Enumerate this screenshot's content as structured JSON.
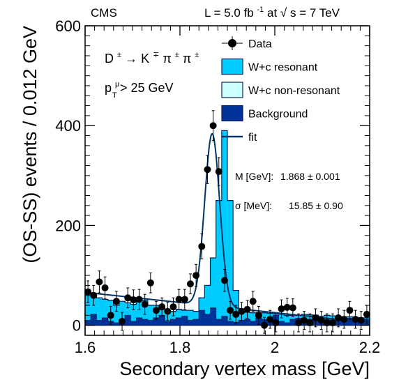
{
  "chart_data": {
    "type": "bar",
    "experiment_label": "CMS",
    "energy_label": {
      "lumi_prefix": "L = 5.0 fb",
      "lumi_exp": "-1",
      "mid": " at ",
      "sqrt": "√",
      "s_part": "s = 7 TeV"
    },
    "xlabel": "Secondary vertex mass [GeV]",
    "ylabel": "(OS-SS) events / 0.012 GeV",
    "xlim": [
      1.6,
      2.2
    ],
    "ylim": [
      -20,
      600
    ],
    "x_ticks": [
      1.6,
      1.8,
      2.0,
      2.2
    ],
    "x_tick_labels": [
      "1.6",
      "1.8",
      "2",
      "2.2"
    ],
    "y_ticks": [
      0,
      200,
      400,
      600
    ],
    "y_tick_labels": [
      "0",
      "200",
      "400",
      "600"
    ],
    "decay_label": {
      "D": "D",
      "D_sup": "±",
      "arrow": " → ",
      "K": "K",
      "K_sup": "∓",
      "pi1": "π",
      "pi1_sup": "±",
      "pi2": "π",
      "pi2_sup": "±"
    },
    "cut_label": {
      "p": "p",
      "p_sup": "μ",
      "p_sub": "T",
      "rest": " > 25 GeV"
    },
    "fit_results": {
      "mass_label": "M [GeV]:",
      "mass_value": "1.868 ± 0.001",
      "sigma_label": "σ [MeV]:",
      "sigma_value": "15.85 ± 0.90"
    },
    "legend_position": "top-right",
    "legend": [
      {
        "name": "Data",
        "kind": "marker",
        "color": "#000000"
      },
      {
        "name": "W+c resonant",
        "kind": "box",
        "color": "#00ccff"
      },
      {
        "name": "W+c non-resonant",
        "kind": "box",
        "color": "#ccffff"
      },
      {
        "name": "Background",
        "kind": "box",
        "color": "#003399"
      },
      {
        "name": "fit",
        "kind": "line",
        "color": "#003366"
      }
    ],
    "colors": {
      "resonant": "#00ccff",
      "nonresonant": "#ccffff",
      "background": "#003399",
      "fit": "#003366",
      "outline": "#112255"
    },
    "bin_edges_start": 1.6,
    "bin_width": 0.012,
    "background_stack": [
      10,
      22,
      10,
      15,
      8,
      5,
      12,
      20,
      8,
      15,
      12,
      10,
      15,
      20,
      8,
      12,
      15,
      18,
      10,
      12,
      30,
      22,
      35,
      12,
      18,
      8,
      6,
      10,
      12,
      8,
      15,
      12,
      10,
      20,
      8,
      5,
      12,
      14,
      10,
      12,
      12,
      8,
      12,
      10,
      15,
      10,
      14,
      12,
      10,
      12
    ],
    "nonresonant_stack": [
      65,
      58,
      55,
      52,
      50,
      40,
      48,
      45,
      42,
      50,
      50,
      40,
      40,
      35,
      30,
      28,
      32,
      30,
      30,
      28,
      55,
      45,
      45,
      40,
      30,
      30,
      28,
      27,
      26,
      25,
      25,
      25,
      24,
      23,
      22,
      20,
      20,
      20,
      22,
      21,
      20,
      18,
      20,
      19,
      18,
      17,
      17,
      16,
      15,
      15
    ],
    "total_stack": [
      65,
      58,
      55,
      52,
      50,
      40,
      48,
      45,
      42,
      50,
      50,
      40,
      40,
      35,
      30,
      28,
      32,
      30,
      30,
      28,
      55,
      80,
      135,
      250,
      390,
      250,
      70,
      27,
      26,
      25,
      25,
      25,
      24,
      23,
      22,
      20,
      20,
      20,
      22,
      21,
      20,
      18,
      20,
      19,
      18,
      17,
      17,
      16,
      15,
      15
    ],
    "data_points": [
      {
        "x": 1.606,
        "y": 67,
        "err": 22
      },
      {
        "x": 1.618,
        "y": 60,
        "err": 20
      },
      {
        "x": 1.63,
        "y": 87,
        "err": 22
      },
      {
        "x": 1.642,
        "y": 75,
        "err": 22
      },
      {
        "x": 1.654,
        "y": 20,
        "err": 18
      },
      {
        "x": 1.666,
        "y": 48,
        "err": 20
      },
      {
        "x": 1.678,
        "y": 8,
        "err": 18
      },
      {
        "x": 1.69,
        "y": 55,
        "err": 20
      },
      {
        "x": 1.702,
        "y": 51,
        "err": 20
      },
      {
        "x": 1.714,
        "y": 52,
        "err": 20
      },
      {
        "x": 1.726,
        "y": 42,
        "err": 20
      },
      {
        "x": 1.738,
        "y": 85,
        "err": 20
      },
      {
        "x": 1.75,
        "y": 30,
        "err": 18
      },
      {
        "x": 1.762,
        "y": 37,
        "err": 18
      },
      {
        "x": 1.774,
        "y": 28,
        "err": 18
      },
      {
        "x": 1.786,
        "y": 37,
        "err": 18
      },
      {
        "x": 1.798,
        "y": 52,
        "err": 20
      },
      {
        "x": 1.81,
        "y": 52,
        "err": 20
      },
      {
        "x": 1.822,
        "y": 83,
        "err": 20
      },
      {
        "x": 1.834,
        "y": 100,
        "err": 22
      },
      {
        "x": 1.846,
        "y": 158,
        "err": 25
      },
      {
        "x": 1.858,
        "y": 312,
        "err": 28
      },
      {
        "x": 1.87,
        "y": 400,
        "err": 30
      },
      {
        "x": 1.882,
        "y": 308,
        "err": 28
      },
      {
        "x": 1.894,
        "y": 90,
        "err": 22
      },
      {
        "x": 1.906,
        "y": 30,
        "err": 18
      },
      {
        "x": 1.918,
        "y": 22,
        "err": 18
      },
      {
        "x": 1.93,
        "y": 28,
        "err": 18
      },
      {
        "x": 1.942,
        "y": 32,
        "err": 18
      },
      {
        "x": 1.954,
        "y": 48,
        "err": 20
      },
      {
        "x": 1.966,
        "y": 20,
        "err": 18
      },
      {
        "x": 1.978,
        "y": 0,
        "err": 16
      },
      {
        "x": 1.99,
        "y": 12,
        "err": 18
      },
      {
        "x": 2.002,
        "y": 5,
        "err": 18
      },
      {
        "x": 2.014,
        "y": 33,
        "err": 18
      },
      {
        "x": 2.026,
        "y": 36,
        "err": 18
      },
      {
        "x": 2.038,
        "y": 35,
        "err": 18
      },
      {
        "x": 2.05,
        "y": 5,
        "err": 18
      },
      {
        "x": 2.062,
        "y": 10,
        "err": 18
      },
      {
        "x": 2.074,
        "y": 5,
        "err": 18
      },
      {
        "x": 2.086,
        "y": 15,
        "err": 18
      },
      {
        "x": 2.098,
        "y": 10,
        "err": 18
      },
      {
        "x": 2.11,
        "y": 5,
        "err": 18
      },
      {
        "x": 2.122,
        "y": 5,
        "err": 18
      },
      {
        "x": 2.134,
        "y": 15,
        "err": 18
      },
      {
        "x": 2.146,
        "y": 12,
        "err": 18
      },
      {
        "x": 2.158,
        "y": 30,
        "err": 18
      },
      {
        "x": 2.17,
        "y": 12,
        "err": 18
      },
      {
        "x": 2.182,
        "y": 10,
        "err": 18
      },
      {
        "x": 2.194,
        "y": 22,
        "err": 18
      }
    ],
    "fit_model": {
      "type": "gaussian_plus_linear",
      "mean": 1.868,
      "sigma": 0.01585,
      "amplitude": 345,
      "linear_at_xmin": 66,
      "linear_at_xmax": 5,
      "x_range": [
        1.6,
        2.2
      ]
    }
  }
}
